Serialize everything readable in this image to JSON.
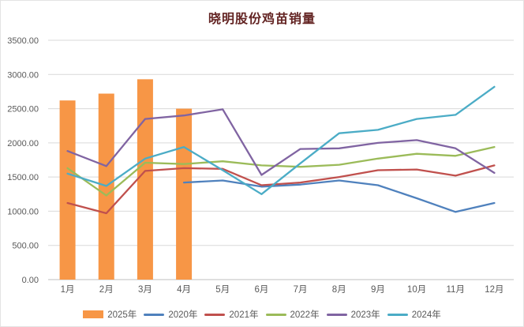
{
  "window": {
    "background": "#FFFFFF",
    "border_color": "#E3E3E3"
  },
  "chart_data": {
    "type": "combo",
    "title": "晓明股份鸡苗销量",
    "title_color": "#632423",
    "xlabel": "",
    "ylabel": "",
    "categories": [
      "1月",
      "2月",
      "3月",
      "4月",
      "5月",
      "6月",
      "7月",
      "8月",
      "9月",
      "10月",
      "11月",
      "12月"
    ],
    "y_axis": {
      "min": 0,
      "max": 3500,
      "step": 500,
      "tick_labels": [
        "0.00",
        "500.00",
        "1000.00",
        "1500.00",
        "2000.00",
        "2500.00",
        "3000.00",
        "3500.00"
      ]
    },
    "grid": true,
    "gridline_color": "#D9D9D9",
    "axis_line_color": "#BFBFBF",
    "axis_text_color": "#595959",
    "legend_position": "bottom",
    "series": [
      {
        "name": "2025年",
        "type": "bar",
        "color": "#F79646",
        "values": [
          2620,
          2720,
          2930,
          2500,
          null,
          null,
          null,
          null,
          null,
          null,
          null,
          null
        ]
      },
      {
        "name": "2020年",
        "type": "line",
        "color": "#4F81BD",
        "values": [
          null,
          null,
          null,
          1420,
          1450,
          1360,
          1390,
          1450,
          1380,
          1190,
          990,
          1120
        ]
      },
      {
        "name": "2021年",
        "type": "line",
        "color": "#C0504D",
        "values": [
          1120,
          970,
          1590,
          1630,
          1620,
          1380,
          1420,
          1500,
          1600,
          1610,
          1520,
          1670
        ]
      },
      {
        "name": "2022年",
        "type": "line",
        "color": "#9BBB59",
        "values": [
          1630,
          1230,
          1710,
          1690,
          1730,
          1670,
          1650,
          1680,
          1770,
          1840,
          1810,
          1940
        ]
      },
      {
        "name": "2023年",
        "type": "line",
        "color": "#8064A2",
        "values": [
          1880,
          1660,
          2350,
          2400,
          2490,
          1530,
          1910,
          1920,
          2000,
          2040,
          1920,
          1560
        ]
      },
      {
        "name": "2024年",
        "type": "line",
        "color": "#4BACC6",
        "values": [
          1550,
          1370,
          1770,
          1940,
          1600,
          1250,
          1700,
          2140,
          2190,
          2350,
          2410,
          2820
        ]
      }
    ],
    "legend_order": [
      "2025年",
      "2020年",
      "2021年",
      "2022年",
      "2023年",
      "2024年"
    ]
  }
}
